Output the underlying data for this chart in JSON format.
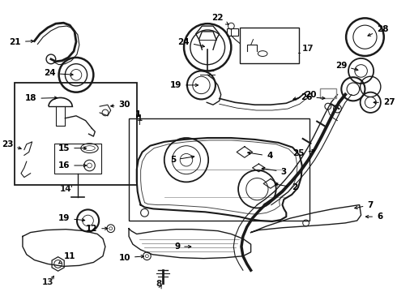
{
  "bg": "#ffffff",
  "lc": "#1a1a1a",
  "gc": "#888888",
  "fig_w": 4.9,
  "fig_h": 3.6,
  "dpi": 100,
  "fs": 7.5,
  "fs_small": 6.5
}
